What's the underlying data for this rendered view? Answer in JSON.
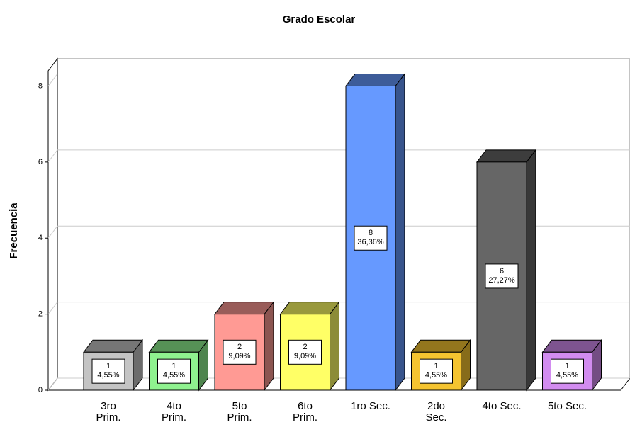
{
  "chart_data": {
    "type": "bar3d",
    "title": "Grado Escolar",
    "y_label": "Frecuencia",
    "categories": [
      [
        "3ro",
        "Prim."
      ],
      [
        "4to",
        "Prim."
      ],
      [
        "5to",
        "Prim."
      ],
      [
        "6to",
        "Prim."
      ],
      [
        "1ro Sec."
      ],
      [
        "2do",
        "Sec."
      ],
      [
        "4to Sec."
      ],
      [
        "5to Sec."
      ]
    ],
    "values": [
      1,
      1,
      2,
      2,
      8,
      1,
      6,
      1
    ],
    "percents": [
      4.55,
      4.55,
      9.09,
      9.09,
      36.36,
      4.55,
      27.27,
      4.55
    ],
    "percent_labels": [
      "4,55%",
      "4,55%",
      "9,09%",
      "9,09%",
      "36,36%",
      "4,55%",
      "27,27%",
      "4,55%"
    ],
    "colors": [
      "#c4c4c4",
      "#8ff28f",
      "#ff9a94",
      "#ffff66",
      "#6699ff",
      "#f5c430",
      "#666666",
      "#d28cf0"
    ],
    "ylim": [
      0,
      8.4
    ],
    "yticks": [
      0,
      2,
      4,
      6,
      8
    ],
    "grid": true
  }
}
